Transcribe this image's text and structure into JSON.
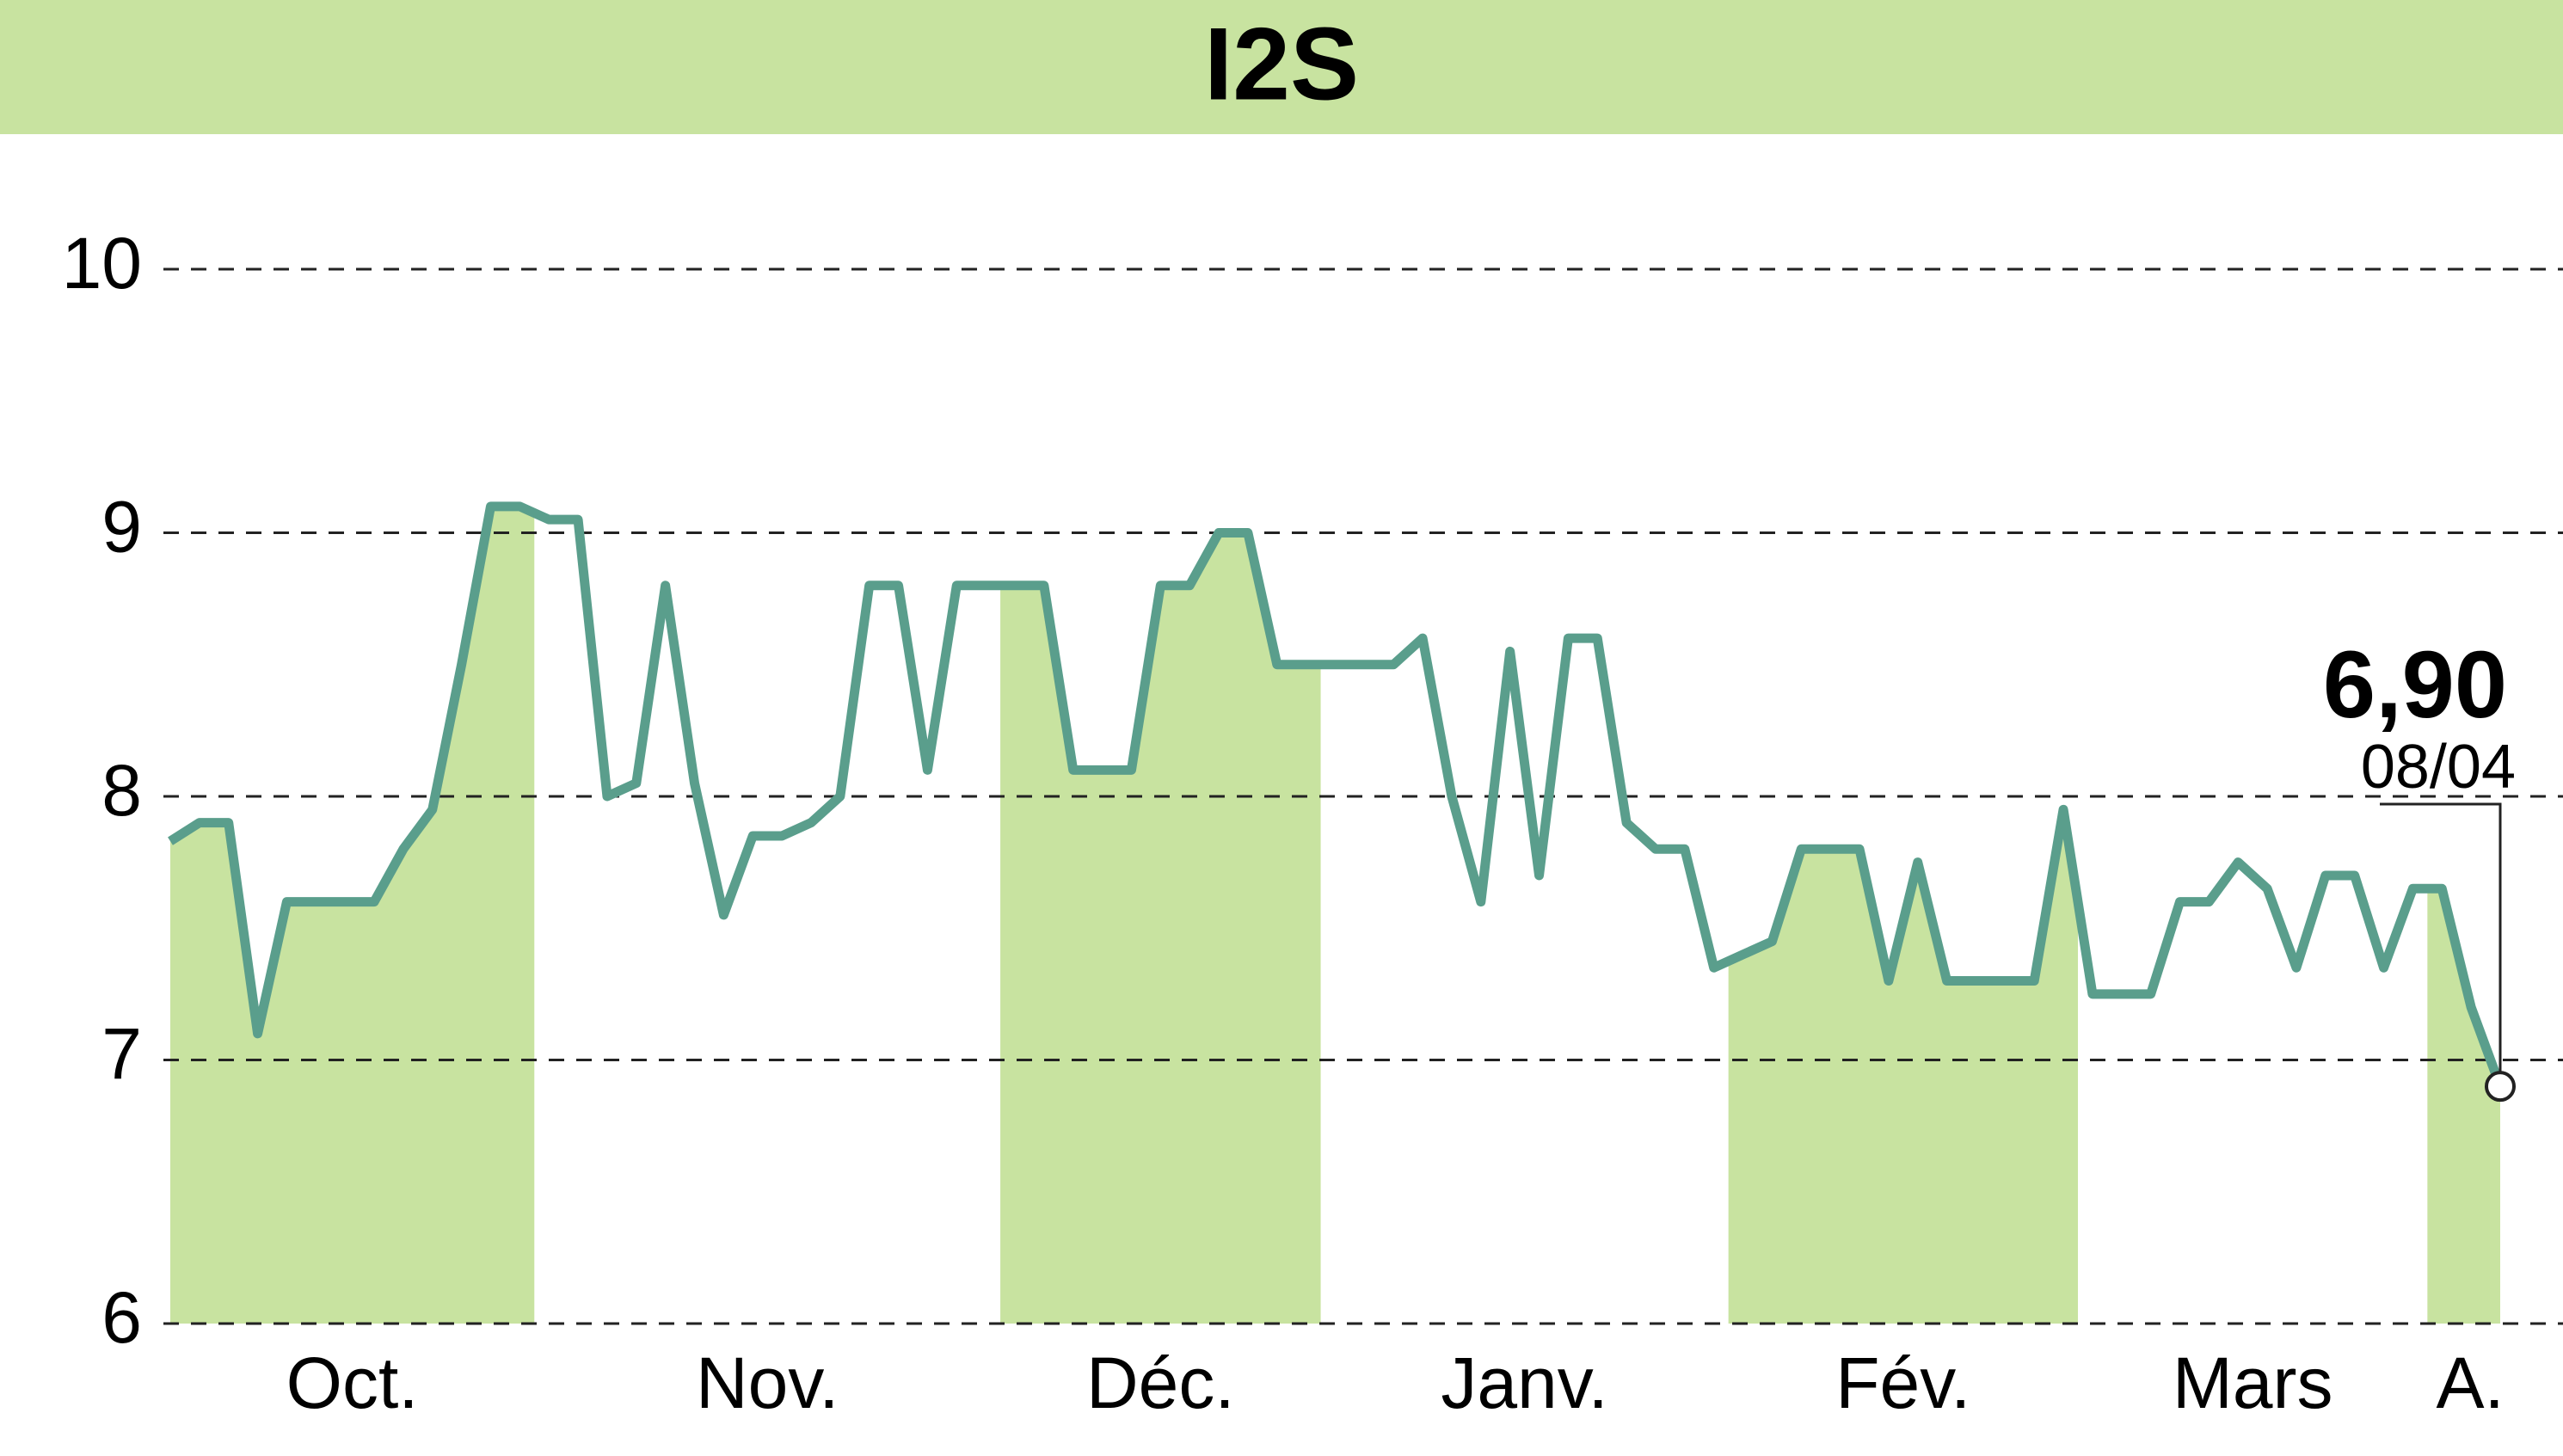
{
  "chart_data": {
    "type": "line",
    "title": "I2S",
    "months": [
      {
        "label": "Oct.",
        "values": [
          7.83,
          7.9,
          7.9,
          7.1,
          7.6,
          7.6,
          7.6,
          7.6,
          7.8,
          7.95,
          8.5,
          9.1,
          9.1
        ]
      },
      {
        "label": "Nov.",
        "values": [
          9.05,
          9.05,
          8.0,
          8.05,
          8.8,
          8.05,
          7.55,
          7.85,
          7.85,
          7.9,
          8.0,
          8.8,
          8.8,
          8.1,
          8.8,
          8.8
        ]
      },
      {
        "label": "Déc.",
        "values": [
          8.8,
          8.8,
          8.1,
          8.1,
          8.1,
          8.8,
          8.8,
          9.0,
          9.0,
          8.5,
          8.5
        ]
      },
      {
        "label": "Janv.",
        "values": [
          8.5,
          8.5,
          8.5,
          8.6,
          8.0,
          7.6,
          8.55,
          7.7,
          8.6,
          8.6,
          7.9,
          7.8,
          7.8,
          7.35
        ]
      },
      {
        "label": "Fév.",
        "values": [
          7.4,
          7.45,
          7.8,
          7.8,
          7.8,
          7.3,
          7.75,
          7.3,
          7.3,
          7.3,
          7.3,
          7.95
        ]
      },
      {
        "label": "Mars",
        "values": [
          7.25,
          7.25,
          7.25,
          7.6,
          7.6,
          7.75,
          7.65,
          7.35,
          7.7,
          7.7,
          7.35,
          7.65
        ]
      },
      {
        "label": "A.",
        "values": [
          7.65,
          7.2,
          6.9
        ],
        "value_labels": [
          null,
          null,
          "6,90"
        ]
      }
    ],
    "last_date": "08/04",
    "line_color": "#5a9e8c",
    "band_color": "#c8e3a0",
    "ylim": [
      6,
      10
    ],
    "yticks": [
      6,
      7,
      8,
      9,
      10
    ],
    "grid": true
  }
}
